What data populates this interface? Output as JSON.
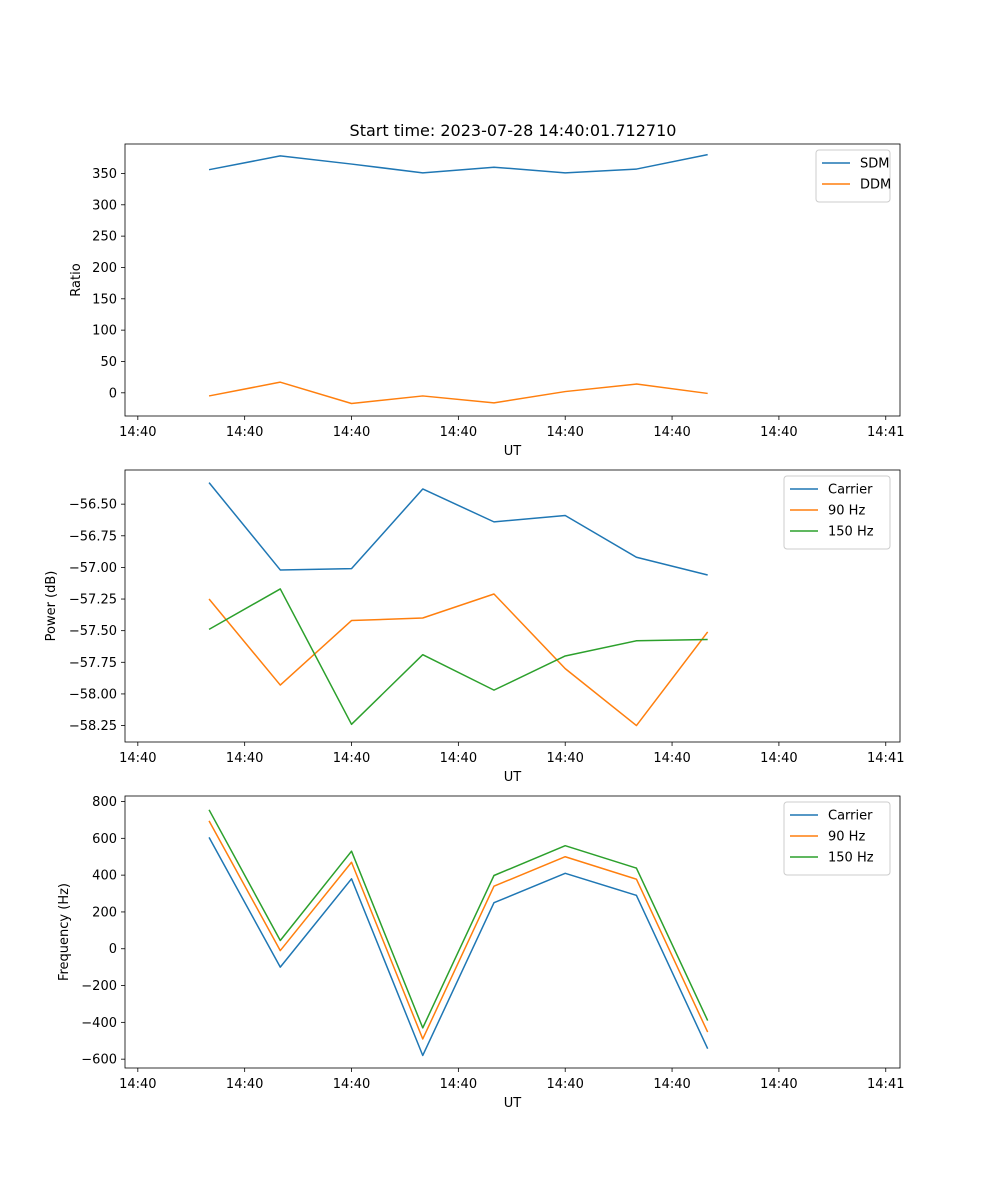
{
  "chart_data": [
    {
      "type": "line",
      "title": "Start time: 2023-07-28 14:40:01.712710",
      "xlabel": "UT",
      "ylabel": "Ratio",
      "x_tick_labels": [
        "14:40",
        "14:40",
        "14:40",
        "14:40",
        "14:40",
        "14:40",
        "14:40",
        "14:41"
      ],
      "ylim": [
        -37,
        397
      ],
      "y_ticks": [
        0,
        50,
        100,
        150,
        200,
        250,
        300,
        350
      ],
      "legend_position": "top-right",
      "grid": false,
      "series": [
        {
          "name": "SDM",
          "color": "#1f77b4",
          "values": [
            356,
            378,
            365,
            351,
            360,
            351,
            357,
            380
          ]
        },
        {
          "name": "DDM",
          "color": "#ff7f0e",
          "values": [
            -5,
            17,
            -17,
            -5,
            -16,
            2,
            14,
            -1
          ]
        }
      ]
    },
    {
      "type": "line",
      "title": "",
      "xlabel": "UT",
      "ylabel": "Power (dB)",
      "x_tick_labels": [
        "14:40",
        "14:40",
        "14:40",
        "14:40",
        "14:40",
        "14:40",
        "14:40",
        "14:41"
      ],
      "ylim": [
        -58.38,
        -56.23
      ],
      "y_ticks": [
        -58.25,
        -58.0,
        -57.75,
        -57.5,
        -57.25,
        -57.0,
        -56.75,
        -56.5
      ],
      "y_tick_labels": [
        "−58.25",
        "−58.00",
        "−57.75",
        "−57.50",
        "−57.25",
        "−57.00",
        "−56.75",
        "−56.50"
      ],
      "legend_position": "top-right",
      "grid": false,
      "series": [
        {
          "name": "Carrier",
          "color": "#1f77b4",
          "values": [
            -56.33,
            -57.02,
            -57.01,
            -56.38,
            -56.64,
            -56.59,
            -56.92,
            -57.06
          ]
        },
        {
          "name": "90 Hz",
          "color": "#ff7f0e",
          "values": [
            -57.25,
            -57.93,
            -57.42,
            -57.4,
            -57.21,
            -57.8,
            -58.25,
            -57.51
          ]
        },
        {
          "name": "150 Hz",
          "color": "#2ca02c",
          "values": [
            -57.49,
            -57.17,
            -58.24,
            -57.69,
            -57.97,
            -57.7,
            -57.58,
            -57.57
          ]
        }
      ]
    },
    {
      "type": "line",
      "title": "",
      "xlabel": "UT",
      "ylabel": "Frequency (Hz)",
      "x_tick_labels": [
        "14:40",
        "14:40",
        "14:40",
        "14:40",
        "14:40",
        "14:40",
        "14:40",
        "14:41"
      ],
      "ylim": [
        -648,
        830
      ],
      "y_ticks": [
        -600,
        -400,
        -200,
        0,
        200,
        400,
        600,
        800
      ],
      "y_tick_labels": [
        "−600",
        "−400",
        "−200",
        "0",
        "200",
        "400",
        "600",
        "800"
      ],
      "legend_position": "top-right",
      "grid": false,
      "series": [
        {
          "name": "Carrier",
          "color": "#1f77b4",
          "values": [
            605,
            -100,
            380,
            -580,
            250,
            410,
            290,
            -543
          ]
        },
        {
          "name": "90 Hz",
          "color": "#ff7f0e",
          "values": [
            695,
            -10,
            470,
            -490,
            340,
            500,
            378,
            -453
          ]
        },
        {
          "name": "150 Hz",
          "color": "#2ca02c",
          "values": [
            755,
            45,
            530,
            -430,
            398,
            560,
            438,
            -390
          ]
        }
      ]
    }
  ],
  "x_time_axis": {
    "point_offsets_s": [
      5.0,
      10.0,
      15.0,
      20.0,
      25.0,
      30.0,
      35.0,
      40.0
    ],
    "tick_offsets_s": [
      0.0,
      7.5,
      15.0,
      22.5,
      30.0,
      37.5,
      45.0,
      52.5
    ],
    "xlim_s": [
      -0.9,
      53.5
    ]
  }
}
